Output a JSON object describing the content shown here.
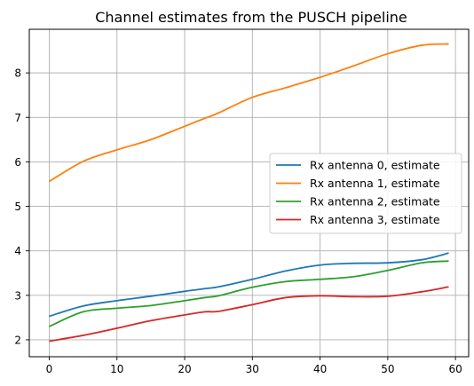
{
  "chart_data": {
    "type": "line",
    "title": "Channel estimates from the PUSCH pipeline",
    "xlabel": "",
    "ylabel": "",
    "xlim": [
      -2.95,
      61.95
    ],
    "ylim": [
      1.62,
      8.98
    ],
    "xticks": [
      0,
      10,
      20,
      30,
      40,
      50,
      60
    ],
    "yticks": [
      2,
      3,
      4,
      5,
      6,
      7,
      8
    ],
    "grid": true,
    "legend_position": "center-right",
    "x": [
      0,
      5,
      10,
      15,
      20,
      23,
      25,
      30,
      35,
      40,
      45,
      50,
      55,
      59
    ],
    "series": [
      {
        "name": "Rx antenna 0, estimate",
        "color": "#1f77b4",
        "values": [
          2.53,
          2.76,
          2.88,
          2.98,
          3.09,
          3.15,
          3.19,
          3.36,
          3.55,
          3.68,
          3.72,
          3.73,
          3.8,
          3.95
        ]
      },
      {
        "name": "Rx antenna 1, estimate",
        "color": "#ff7f0e",
        "values": [
          5.56,
          6.01,
          6.27,
          6.5,
          6.8,
          6.98,
          7.1,
          7.45,
          7.67,
          7.9,
          8.16,
          8.43,
          8.62,
          8.65
        ]
      },
      {
        "name": "Rx antenna 2, estimate",
        "color": "#2ca02c",
        "values": [
          2.3,
          2.63,
          2.71,
          2.77,
          2.88,
          2.95,
          2.99,
          3.18,
          3.31,
          3.36,
          3.42,
          3.56,
          3.73,
          3.77
        ]
      },
      {
        "name": "Rx antenna 3, estimate",
        "color": "#d62728",
        "values": [
          1.97,
          2.1,
          2.26,
          2.43,
          2.56,
          2.63,
          2.64,
          2.79,
          2.95,
          2.99,
          2.97,
          2.98,
          3.08,
          3.19
        ]
      }
    ]
  }
}
